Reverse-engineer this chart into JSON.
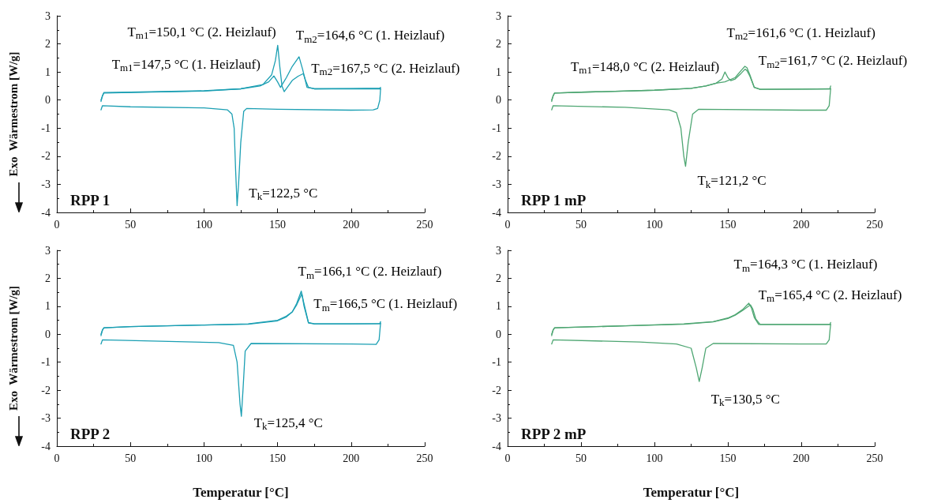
{
  "chart_data": [
    {
      "type": "line",
      "title": "RPP 1",
      "ylabel": "Exo  Wärmestrom [W/g]",
      "xlim": [
        0,
        250
      ],
      "xticks": [
        0,
        50,
        100,
        150,
        200,
        250
      ],
      "ylim": [
        -4,
        3
      ],
      "yticks": [
        -4,
        -3,
        -2,
        -1,
        0,
        1,
        2,
        3
      ],
      "grid": false,
      "marker": "none",
      "line_style": "solid",
      "series": [
        {
          "color": "#1b9fb3",
          "x": [
            30,
            31,
            32,
            50,
            100,
            125,
            138,
            144,
            147.5,
            150,
            152,
            156,
            160,
            164.6,
            167,
            170,
            175,
            200,
            219.5,
            220
          ],
          "values": [
            0,
            0.15,
            0.25,
            0.27,
            0.32,
            0.4,
            0.5,
            0.65,
            0.86,
            0.65,
            0.45,
            0.8,
            1.2,
            1.54,
            1.1,
            0.45,
            0.4,
            0.41,
            0.42,
            0.45
          ]
        },
        {
          "color": "#1b9fb3",
          "x": [
            220,
            219.5,
            218,
            215,
            200,
            150,
            129,
            127,
            125,
            123.5,
            122.5,
            121.5,
            120.5,
            119,
            116,
            100,
            50,
            31,
            30
          ],
          "values": [
            0.4,
            0,
            -0.3,
            -0.35,
            -0.36,
            -0.33,
            -0.3,
            -0.4,
            -1.5,
            -3,
            -3.76,
            -2.5,
            -1,
            -0.5,
            -0.35,
            -0.28,
            -0.24,
            -0.2,
            -0.35
          ]
        },
        {
          "color": "#1b9fb3",
          "x": [
            30,
            31,
            32,
            50,
            100,
            125,
            140,
            146,
            148.5,
            150.1,
            151.5,
            153,
            154.5,
            160,
            164,
            167.5,
            169,
            171,
            175,
            200,
            220
          ],
          "values": [
            -0.05,
            0.15,
            0.27,
            0.28,
            0.33,
            0.4,
            0.55,
            0.9,
            1.4,
            1.95,
            1.2,
            0.5,
            0.3,
            0.7,
            0.85,
            0.94,
            0.7,
            0.45,
            0.4,
            0.4,
            0.4
          ]
        }
      ],
      "annotations": [
        {
          "text": "T$_{m1}$=150,1 °C (2. Heizlauf)",
          "x": 150.1,
          "y": 1.95
        },
        {
          "text": "T$_{m1}$=147,5 °C (1. Heizlauf)",
          "x": 147.5,
          "y": 0.86
        },
        {
          "text": "T$_{m2}$=164,6 °C (1. Heizlauf)",
          "x": 164.6,
          "y": 1.54
        },
        {
          "text": "T$_{m2}$=167,5 °C (2. Heizlauf)",
          "x": 167.5,
          "y": 0.94
        },
        {
          "text": "T$_{k}$=122,5 °C",
          "x": 122.5,
          "y": -3.76
        }
      ]
    },
    {
      "type": "line",
      "title": "RPP 1 mP",
      "xlim": [
        0,
        250
      ],
      "xticks": [
        0,
        50,
        100,
        150,
        200,
        250
      ],
      "ylim": [
        -4,
        3
      ],
      "yticks": [
        -4,
        -3,
        -2,
        -1,
        0,
        1,
        2,
        3
      ],
      "grid": false,
      "marker": "none",
      "line_style": "solid",
      "series": [
        {
          "color": "#4ea672",
          "x": [
            30,
            31,
            32,
            50,
            100,
            125,
            135,
            142,
            148,
            155,
            159,
            161.6,
            163,
            165,
            168,
            172,
            200,
            219.5,
            220
          ],
          "values": [
            0,
            0.15,
            0.25,
            0.28,
            0.35,
            0.42,
            0.5,
            0.6,
            0.65,
            0.8,
            1.05,
            1.2,
            1.15,
            0.9,
            0.45,
            0.38,
            0.39,
            0.4,
            0.5
          ]
        },
        {
          "color": "#4ea672",
          "x": [
            220,
            219.5,
            219,
            217,
            200,
            130,
            126,
            123,
            121.2,
            120,
            118,
            115,
            110,
            80,
            31,
            30
          ],
          "values": [
            0.4,
            0.1,
            -0.2,
            -0.36,
            -0.36,
            -0.33,
            -0.5,
            -1.5,
            -2.36,
            -2,
            -1,
            -0.45,
            -0.35,
            -0.26,
            -0.2,
            -0.35
          ]
        },
        {
          "color": "#4ea672",
          "x": [
            30,
            31,
            32,
            50,
            100,
            125,
            135,
            142,
            146,
            148,
            150,
            152,
            155,
            159,
            161.7,
            163,
            165,
            168,
            172,
            200,
            220
          ],
          "values": [
            -0.05,
            0.15,
            0.25,
            0.28,
            0.35,
            0.42,
            0.5,
            0.6,
            0.75,
            1.0,
            0.8,
            0.69,
            0.75,
            0.95,
            1.1,
            1.05,
            0.85,
            0.45,
            0.38,
            0.39,
            0.4
          ]
        }
      ],
      "annotations": [
        {
          "text": "T$_{m1}$=148,0 °C (2. Heizlauf)",
          "x": 148,
          "y": 1.0
        },
        {
          "text": "T$_{m2}$=161,6 °C (1. Heizlauf)",
          "x": 161.6,
          "y": 1.2
        },
        {
          "text": "T$_{m2}$=161,7 °C (2. Heizlauf)",
          "x": 161.7,
          "y": 1.1
        },
        {
          "text": "T$_{k}$=121,2 °C",
          "x": 121.2,
          "y": -2.36
        }
      ]
    },
    {
      "type": "line",
      "title": "RPP 2",
      "ylabel": "Exo  Wärmestrom [W/g]",
      "xlabel": "Temperatur [°C]",
      "xlim": [
        0,
        250
      ],
      "xticks": [
        0,
        50,
        100,
        150,
        200,
        250
      ],
      "ylim": [
        -4,
        3
      ],
      "yticks": [
        -4,
        -3,
        -2,
        -1,
        0,
        1,
        2,
        3
      ],
      "grid": false,
      "marker": "none",
      "line_style": "solid",
      "series": [
        {
          "color": "#1b9fb3",
          "x": [
            30,
            31,
            32,
            50,
            100,
            130,
            150,
            156,
            160,
            163,
            166.5,
            168,
            171,
            175,
            200,
            219.5,
            220
          ],
          "values": [
            0,
            0.15,
            0.23,
            0.27,
            0.33,
            0.37,
            0.5,
            0.65,
            0.8,
            1.05,
            1.45,
            1.0,
            0.4,
            0.37,
            0.37,
            0.38,
            0.45
          ]
        },
        {
          "color": "#1b9fb3",
          "x": [
            220,
            219.5,
            219,
            217,
            200,
            132,
            128,
            126.5,
            125.4,
            124.5,
            122.5,
            120,
            110,
            31,
            30
          ],
          "values": [
            0.4,
            0.1,
            -0.2,
            -0.36,
            -0.35,
            -0.33,
            -0.6,
            -2,
            -2.93,
            -2.5,
            -1,
            -0.4,
            -0.3,
            -0.2,
            -0.35
          ]
        },
        {
          "color": "#1b9fb3",
          "x": [
            30,
            31,
            32,
            50,
            100,
            130,
            150,
            156,
            160,
            163,
            166.1,
            167.5,
            171,
            175,
            200,
            220
          ],
          "values": [
            -0.05,
            0.15,
            0.23,
            0.27,
            0.33,
            0.36,
            0.48,
            0.62,
            0.8,
            1.1,
            1.54,
            1.2,
            0.42,
            0.37,
            0.37,
            0.38
          ]
        }
      ],
      "annotations": [
        {
          "text": "T$_{m}$=166,1 °C (2. Heizlauf)",
          "x": 166.1,
          "y": 1.54
        },
        {
          "text": "T$_{m}$=166,5 °C (1. Heizlauf)",
          "x": 166.5,
          "y": 1.45
        },
        {
          "text": "T$_{k}$=125,4 °C",
          "x": 125.4,
          "y": -2.93
        }
      ]
    },
    {
      "type": "line",
      "title": "RPP 2 mP",
      "xlabel": "Temperatur [°C]",
      "xlim": [
        0,
        250
      ],
      "xticks": [
        0,
        50,
        100,
        150,
        200,
        250
      ],
      "ylim": [
        -4,
        3
      ],
      "yticks": [
        -4,
        -3,
        -2,
        -1,
        0,
        1,
        2,
        3
      ],
      "grid": false,
      "marker": "none",
      "line_style": "solid",
      "series": [
        {
          "color": "#4ea672",
          "x": [
            30,
            31,
            32,
            80,
            120,
            140,
            150,
            155,
            160,
            164.3,
            166,
            168,
            171,
            200,
            219.5,
            220
          ],
          "values": [
            0,
            0.15,
            0.23,
            0.3,
            0.37,
            0.45,
            0.58,
            0.7,
            0.88,
            1.11,
            0.95,
            0.6,
            0.35,
            0.35,
            0.35,
            0.42
          ]
        },
        {
          "color": "#4ea672",
          "x": [
            220,
            219.5,
            219,
            217,
            200,
            140,
            135,
            132.5,
            130.5,
            128.5,
            125,
            115,
            90,
            31,
            30
          ],
          "values": [
            0.35,
            0.1,
            -0.2,
            -0.35,
            -0.35,
            -0.33,
            -0.5,
            -1.2,
            -1.69,
            -1.2,
            -0.5,
            -0.35,
            -0.28,
            -0.2,
            -0.35
          ]
        },
        {
          "color": "#4ea672",
          "x": [
            30,
            31,
            32,
            80,
            120,
            140,
            150,
            155,
            160,
            165.4,
            167,
            169,
            172,
            200,
            220
          ],
          "values": [
            -0.05,
            0.15,
            0.23,
            0.3,
            0.36,
            0.44,
            0.56,
            0.68,
            0.85,
            1.05,
            0.9,
            0.55,
            0.35,
            0.35,
            0.35
          ]
        }
      ],
      "annotations": [
        {
          "text": "T$_{m}$=164,3 °C (1. Heizlauf)",
          "x": 164.3,
          "y": 1.11
        },
        {
          "text": "T$_{m}$=165,4 °C (2. Heizlauf)",
          "x": 165.4,
          "y": 1.05
        },
        {
          "text": "T$_{k}$=130,5 °C",
          "x": 130.5,
          "y": -1.69
        }
      ]
    }
  ]
}
